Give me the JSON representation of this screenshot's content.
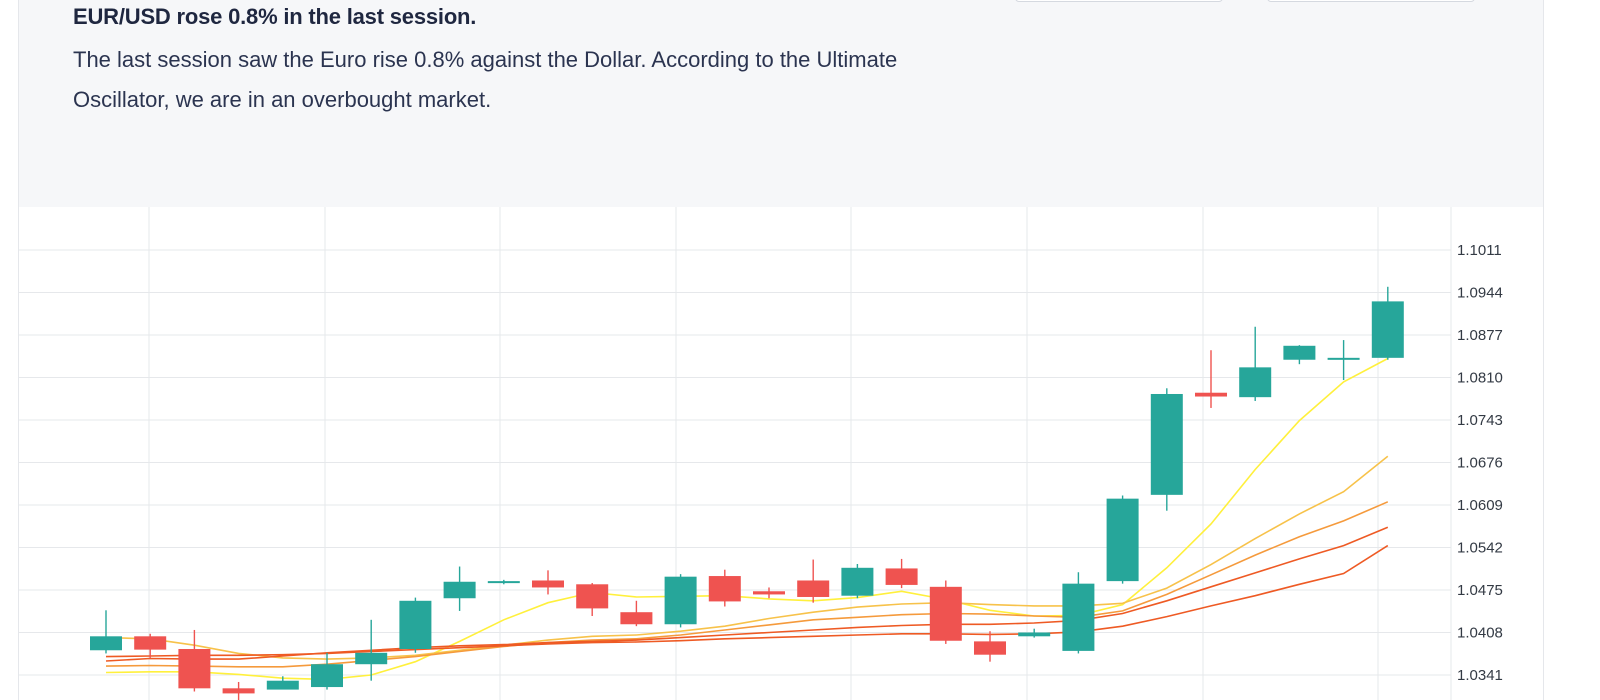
{
  "summary": {
    "headline": "EUR/USD rose 0.8% in the last session.",
    "body": "The last session saw the Euro rise 0.8% against the Dollar. According to the Ultimate Oscillator, we are in an overbought market."
  },
  "colors": {
    "bullish": "#26a69a",
    "bearish": "#ef5350",
    "ma_fast": "#fff03c",
    "ma_mid": "#f7c24a",
    "ma_slow": "#f59a3c",
    "ma_slowest": "#ee5a24",
    "grid": "#e6e8eb",
    "panel_bg": "#f6f7f9"
  },
  "chart_data": {
    "type": "candlestick",
    "y_ticks": [
      "1.1011",
      "1.0944",
      "1.0877",
      "1.0810",
      "1.0743",
      "1.0676",
      "1.0609",
      "1.0542",
      "1.0475",
      "1.0408",
      "1.0341"
    ],
    "ylim": [
      1.0324,
      1.1045
    ],
    "candles": [
      {
        "o": 1.038,
        "h": 1.0443,
        "l": 1.0375,
        "c": 1.0402
      },
      {
        "o": 1.0402,
        "h": 1.0406,
        "l": 1.0368,
        "c": 1.0381
      },
      {
        "o": 1.0382,
        "h": 1.0412,
        "l": 1.0315,
        "c": 1.032
      },
      {
        "o": 1.032,
        "h": 1.033,
        "l": 1.03,
        "c": 1.0312
      },
      {
        "o": 1.0318,
        "h": 1.0339,
        "l": 1.032,
        "c": 1.0332
      },
      {
        "o": 1.0322,
        "h": 1.0376,
        "l": 1.0318,
        "c": 1.0358
      },
      {
        "o": 1.0358,
        "h": 1.0428,
        "l": 1.0332,
        "c": 1.0376
      },
      {
        "o": 1.0382,
        "h": 1.0463,
        "l": 1.0376,
        "c": 1.0458
      },
      {
        "o": 1.0462,
        "h": 1.0512,
        "l": 1.0442,
        "c": 1.0488
      },
      {
        "o": 1.0487,
        "h": 1.0491,
        "l": 1.0484,
        "c": 1.0489
      },
      {
        "o": 1.049,
        "h": 1.0506,
        "l": 1.0468,
        "c": 1.0479
      },
      {
        "o": 1.0484,
        "h": 1.0486,
        "l": 1.0434,
        "c": 1.0446
      },
      {
        "o": 1.044,
        "h": 1.0458,
        "l": 1.0418,
        "c": 1.0421
      },
      {
        "o": 1.0421,
        "h": 1.05,
        "l": 1.0416,
        "c": 1.0496
      },
      {
        "o": 1.0497,
        "h": 1.0507,
        "l": 1.0449,
        "c": 1.0457
      },
      {
        "o": 1.0473,
        "h": 1.0479,
        "l": 1.0462,
        "c": 1.0468
      },
      {
        "o": 1.049,
        "h": 1.0523,
        "l": 1.0455,
        "c": 1.0464
      },
      {
        "o": 1.0466,
        "h": 1.0516,
        "l": 1.0462,
        "c": 1.051
      },
      {
        "o": 1.0509,
        "h": 1.0524,
        "l": 1.0478,
        "c": 1.0483
      },
      {
        "o": 1.048,
        "h": 1.049,
        "l": 1.039,
        "c": 1.0395
      },
      {
        "o": 1.0394,
        "h": 1.041,
        "l": 1.0362,
        "c": 1.0373
      },
      {
        "o": 1.0402,
        "h": 1.0414,
        "l": 1.04,
        "c": 1.0408
      },
      {
        "o": 1.0379,
        "h": 1.0503,
        "l": 1.0375,
        "c": 1.0485
      },
      {
        "o": 1.0489,
        "h": 1.0624,
        "l": 1.0485,
        "c": 1.0619
      },
      {
        "o": 1.0625,
        "h": 1.0793,
        "l": 1.06,
        "c": 1.0784
      },
      {
        "o": 1.0786,
        "h": 1.0853,
        "l": 1.0762,
        "c": 1.078
      },
      {
        "o": 1.0779,
        "h": 1.089,
        "l": 1.0773,
        "c": 1.0826
      },
      {
        "o": 1.0838,
        "h": 1.0861,
        "l": 1.0831,
        "c": 1.086
      },
      {
        "o": 1.0839,
        "h": 1.0869,
        "l": 1.0806,
        "c": 1.0841
      },
      {
        "o": 1.0841,
        "h": 1.0953,
        "l": 1.0838,
        "c": 1.093
      }
    ],
    "moving_averages": [
      {
        "color_key": "ma_fast",
        "values": [
          1.0345,
          1.0346,
          1.0346,
          1.0342,
          1.0336,
          1.0334,
          1.0341,
          1.0362,
          1.0394,
          1.0428,
          1.0455,
          1.0471,
          1.0464,
          1.0465,
          1.0466,
          1.0461,
          1.0458,
          1.0463,
          1.0473,
          1.046,
          1.0443,
          1.0434,
          1.0435,
          1.0452,
          1.051,
          1.0579,
          1.0665,
          1.0742,
          1.0803,
          1.084
        ]
      },
      {
        "color_key": "ma_mid",
        "values": [
          1.04,
          1.0398,
          1.0388,
          1.0375,
          1.0368,
          1.0366,
          1.0368,
          1.0372,
          1.038,
          1.0388,
          1.0396,
          1.0402,
          1.0404,
          1.041,
          1.0418,
          1.043,
          1.044,
          1.0448,
          1.0453,
          1.0455,
          1.0452,
          1.045,
          1.045,
          1.0454,
          1.0478,
          1.0515,
          1.0556,
          1.0595,
          1.063,
          1.0686
        ]
      },
      {
        "color_key": "ma_slow",
        "values": [
          1.0355,
          1.0356,
          1.0355,
          1.0354,
          1.0354,
          1.0358,
          1.0364,
          1.037,
          1.0378,
          1.0386,
          1.0392,
          1.0396,
          1.0398,
          1.0404,
          1.0412,
          1.042,
          1.0428,
          1.0432,
          1.0436,
          1.0438,
          1.0437,
          1.0434,
          1.0432,
          1.0442,
          1.0468,
          1.0499,
          1.053,
          1.0559,
          1.0584,
          1.0614
        ]
      },
      {
        "color_key": "ma_slowest",
        "values": [
          1.0363,
          1.0367,
          1.0366,
          1.0366,
          1.0371,
          1.0376,
          1.038,
          1.0384,
          1.0387,
          1.0389,
          1.0392,
          1.0394,
          1.0396,
          1.04,
          1.0404,
          1.0408,
          1.0412,
          1.0416,
          1.0419,
          1.0421,
          1.0421,
          1.0423,
          1.0427,
          1.0438,
          1.0458,
          1.048,
          1.0502,
          1.0524,
          1.0545,
          1.0574
        ]
      },
      {
        "color_key": "ma_slowest",
        "values": [
          1.037,
          1.0371,
          1.0372,
          1.0372,
          1.0373,
          1.0375,
          1.0378,
          1.0381,
          1.0384,
          1.0387,
          1.039,
          1.0392,
          1.0393,
          1.0395,
          1.0398,
          1.04,
          1.0402,
          1.0404,
          1.0406,
          1.0406,
          1.0405,
          1.0406,
          1.0409,
          1.0418,
          1.0433,
          1.045,
          1.0466,
          1.0484,
          1.0501,
          1.0545
        ]
      }
    ]
  }
}
